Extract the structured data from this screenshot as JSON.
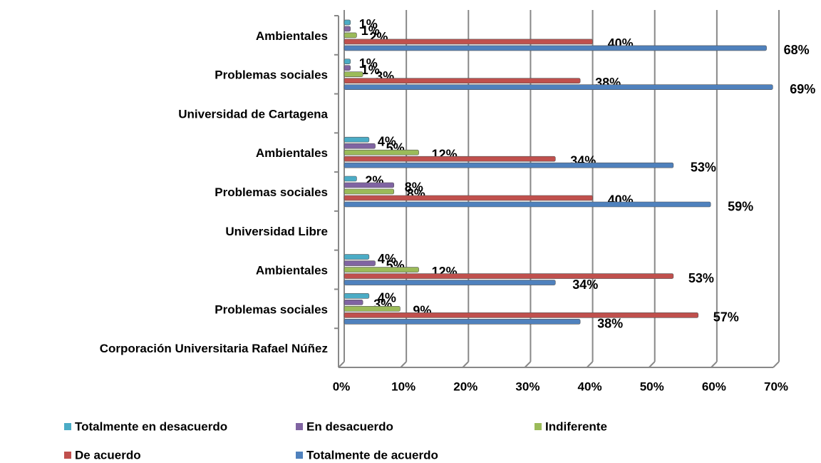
{
  "chart_data": {
    "type": "bar",
    "orientation": "horizontal",
    "categories": [
      "Ambientales",
      "Problemas sociales",
      "Universidad de Cartagena",
      "Ambientales",
      "Problemas sociales",
      "Universidad Libre",
      "Ambientales",
      "Problemas sociales",
      "Corporación Universitaria Rafael Núñez"
    ],
    "series": [
      {
        "name": "Totalmente en desacuerdo",
        "color": "#4bacc6",
        "values": [
          1,
          1,
          null,
          4,
          2,
          null,
          4,
          4,
          null
        ],
        "value_labels": [
          "1%",
          "1%",
          null,
          "4%",
          "2%",
          null,
          "4%",
          "4%",
          null
        ]
      },
      {
        "name": "En desacuerdo",
        "color": "#8064a2",
        "values": [
          1,
          1,
          null,
          5,
          8,
          null,
          5,
          3,
          null
        ],
        "value_labels": [
          "1%",
          "1%",
          null,
          "5%",
          "8%",
          null,
          "5%",
          "3%",
          null
        ]
      },
      {
        "name": "Indiferente",
        "color": "#9bbb59",
        "values": [
          2,
          3,
          null,
          12,
          8,
          null,
          12,
          9,
          null
        ],
        "value_labels": [
          "2%",
          "3%",
          null,
          "12%",
          "8%",
          null,
          "12%",
          "9%",
          null
        ]
      },
      {
        "name": "De acuerdo",
        "color": "#c0504d",
        "values": [
          40,
          38,
          null,
          34,
          40,
          null,
          53,
          57,
          null
        ],
        "value_labels": [
          "40%",
          "38%",
          null,
          "34%",
          "40%",
          null,
          "53%",
          "57%",
          null
        ]
      },
      {
        "name": "Totalmente de acuerdo",
        "color": "#4f81bd",
        "values": [
          68,
          69,
          null,
          53,
          59,
          null,
          34,
          38,
          null
        ],
        "value_labels": [
          "68%",
          "69%",
          null,
          "53%",
          "59%",
          null,
          "34%",
          "38%",
          null
        ]
      }
    ],
    "xlim": [
      0,
      70
    ],
    "xticks": [
      {
        "value": 0,
        "label": "0%"
      },
      {
        "value": 10,
        "label": "10%"
      },
      {
        "value": 20,
        "label": "20%"
      },
      {
        "value": 30,
        "label": "30%"
      },
      {
        "value": 40,
        "label": "40%"
      },
      {
        "value": 50,
        "label": "50%"
      },
      {
        "value": 60,
        "label": "60%"
      },
      {
        "value": 70,
        "label": "70%"
      }
    ],
    "grid": true,
    "legend": "bottom"
  }
}
